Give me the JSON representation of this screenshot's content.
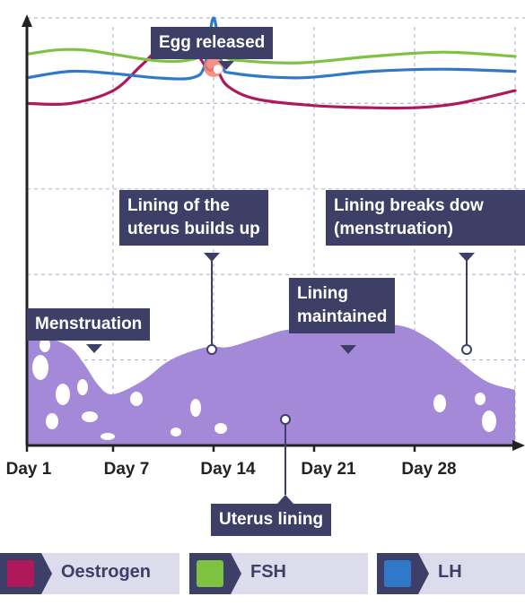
{
  "chart_data": {
    "type": "line",
    "x": [
      1,
      7,
      14,
      21,
      28
    ],
    "x_tick_labels": [
      "Day 1",
      "Day 7",
      "Day 14",
      "Day 21",
      "Day 28"
    ],
    "xlim": [
      1,
      35
    ],
    "ylim": [
      0,
      10
    ],
    "grid": true,
    "series": [
      {
        "name": "Oestrogen",
        "color": "#b0185c",
        "points": [
          [
            1,
            8.0
          ],
          [
            4,
            8.0
          ],
          [
            7,
            8.3
          ],
          [
            9,
            8.9
          ],
          [
            11,
            9.5
          ],
          [
            12.5,
            9.3
          ],
          [
            13.6,
            8.8
          ],
          [
            14.2,
            8.8
          ],
          [
            15,
            8.4
          ],
          [
            17,
            8.1
          ],
          [
            21,
            7.95
          ],
          [
            25,
            7.9
          ],
          [
            28,
            7.9
          ],
          [
            31,
            8.0
          ],
          [
            35,
            8.3
          ]
        ]
      },
      {
        "name": "FSH",
        "color": "#7ec242",
        "points": [
          [
            1,
            9.15
          ],
          [
            3,
            9.25
          ],
          [
            5,
            9.25
          ],
          [
            7,
            9.15
          ],
          [
            10,
            9.0
          ],
          [
            12,
            9.0
          ],
          [
            13.4,
            9.15
          ],
          [
            14,
            9.45
          ],
          [
            14.7,
            9.1
          ],
          [
            16,
            9.0
          ],
          [
            20,
            8.95
          ],
          [
            25,
            9.1
          ],
          [
            30,
            9.2
          ],
          [
            35,
            9.1
          ]
        ]
      },
      {
        "name": "LH",
        "color": "#2f79c8",
        "points": [
          [
            1,
            8.6
          ],
          [
            4,
            8.75
          ],
          [
            7,
            8.7
          ],
          [
            10,
            8.6
          ],
          [
            12.5,
            8.6
          ],
          [
            13.4,
            8.9
          ],
          [
            14,
            10.0
          ],
          [
            14.6,
            8.9
          ],
          [
            15.5,
            8.7
          ],
          [
            20,
            8.6
          ],
          [
            25,
            8.75
          ],
          [
            30,
            8.8
          ],
          [
            35,
            8.75
          ]
        ]
      }
    ],
    "uterus_lining_thickness": {
      "name": "Uterus lining",
      "color": "#a489d9",
      "points": [
        [
          1,
          2.5
        ],
        [
          2.5,
          2.5
        ],
        [
          4,
          2.3
        ],
        [
          5,
          1.9
        ],
        [
          6,
          1.4
        ],
        [
          7,
          1.2
        ],
        [
          9,
          1.5
        ],
        [
          11,
          2.0
        ],
        [
          13.5,
          2.3
        ],
        [
          15,
          2.3
        ],
        [
          17,
          2.5
        ],
        [
          19,
          2.7
        ],
        [
          21,
          2.7
        ],
        [
          24,
          2.8
        ],
        [
          27,
          2.8
        ],
        [
          29,
          2.5
        ],
        [
          31,
          2.0
        ],
        [
          33,
          1.5
        ],
        [
          35,
          1.3
        ]
      ]
    },
    "annotations": {
      "egg_released": "Egg released",
      "lining_builds_up": "Lining of the\nuterus builds up",
      "lining_breaks_down": "Lining breaks dow\n(menstruation)",
      "menstruation": "Menstruation",
      "lining_maintained": "Lining\nmaintained",
      "uterus_lining": "Uterus lining"
    },
    "legend": [
      "Oestrogen",
      "FSH",
      "LH"
    ],
    "legend_position": "bottom"
  },
  "colors": {
    "callout_bg": "#3d3f67",
    "legend_bg": "#dcdcec",
    "grid": "#b8b8d4",
    "axis": "#222222",
    "ovulation_marker": "#f08070"
  }
}
